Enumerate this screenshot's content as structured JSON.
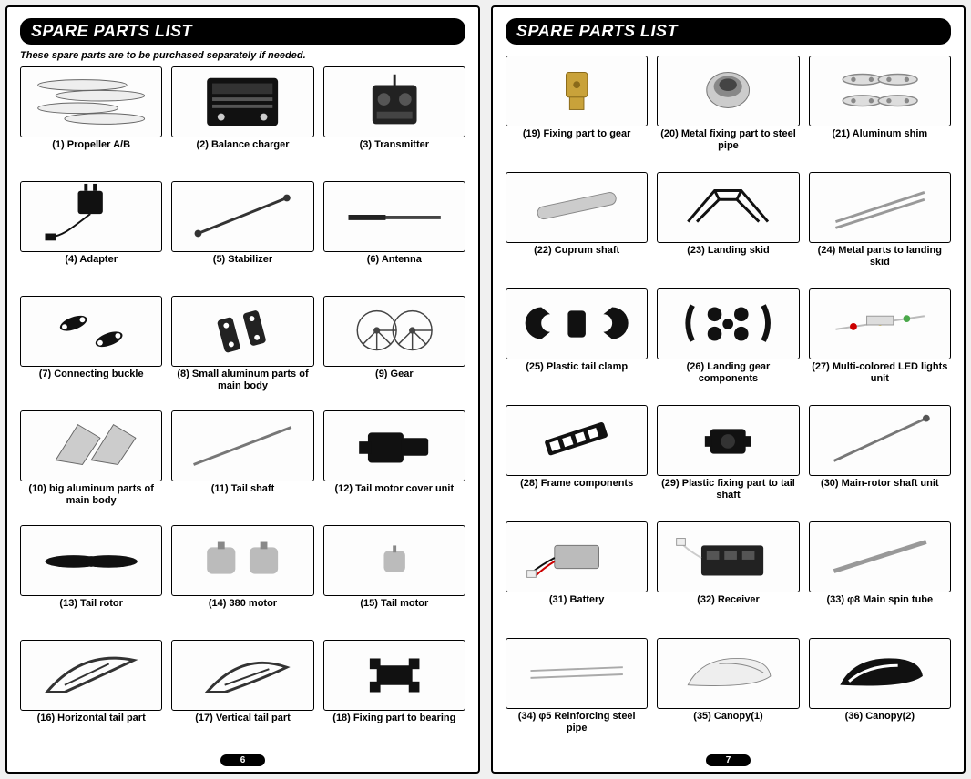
{
  "titleLeft": "SPARE PARTS LIST",
  "titleRight": "SPARE PARTS LIST",
  "subtitle": "These spare parts are to be purchased separately if needed.",
  "pageLeftNum": "6",
  "pageRightNum": "7",
  "leftItems": [
    {
      "n": "1",
      "label": "(1) Propeller A/B"
    },
    {
      "n": "2",
      "label": "(2) Balance charger"
    },
    {
      "n": "3",
      "label": "(3) Transmitter"
    },
    {
      "n": "4",
      "label": "(4) Adapter"
    },
    {
      "n": "5",
      "label": "(5) Stabilizer"
    },
    {
      "n": "6",
      "label": "(6) Antenna"
    },
    {
      "n": "7",
      "label": "(7) Connecting buckle"
    },
    {
      "n": "8",
      "label": "(8) Small aluminum parts of main body"
    },
    {
      "n": "9",
      "label": "(9) Gear"
    },
    {
      "n": "10",
      "label": "(10) big aluminum parts of main body"
    },
    {
      "n": "11",
      "label": "(11) Tail shaft"
    },
    {
      "n": "12",
      "label": "(12) Tail motor cover unit"
    },
    {
      "n": "13",
      "label": "(13) Tail rotor"
    },
    {
      "n": "14",
      "label": "(14) 380 motor"
    },
    {
      "n": "15",
      "label": "(15) Tail motor"
    },
    {
      "n": "16",
      "label": "(16) Horizontal tail part"
    },
    {
      "n": "17",
      "label": "(17) Vertical tail part"
    },
    {
      "n": "18",
      "label": "(18) Fixing part to bearing"
    }
  ],
  "rightItems": [
    {
      "n": "19",
      "label": "(19) Fixing part to gear"
    },
    {
      "n": "20",
      "label": "(20) Metal fixing part to steel pipe"
    },
    {
      "n": "21",
      "label": "(21) Aluminum shim"
    },
    {
      "n": "22",
      "label": "(22) Cuprum shaft"
    },
    {
      "n": "23",
      "label": "(23) Landing skid"
    },
    {
      "n": "24",
      "label": "(24) Metal parts to landing skid"
    },
    {
      "n": "25",
      "label": "(25) Plastic tail clamp"
    },
    {
      "n": "26",
      "label": "(26) Landing gear components"
    },
    {
      "n": "27",
      "label": "(27) Multi-colored LED lights unit"
    },
    {
      "n": "28",
      "label": "(28) Frame components"
    },
    {
      "n": "29",
      "label": "(29) Plastic fixing part to tail shaft"
    },
    {
      "n": "30",
      "label": "(30) Main-rotor shaft unit"
    },
    {
      "n": "31",
      "label": "(31) Battery"
    },
    {
      "n": "32",
      "label": "(32) Receiver"
    },
    {
      "n": "33",
      "label": "(33)  φ8 Main spin tube"
    },
    {
      "n": "34",
      "label": "(34) φ5 Reinforcing steel pipe"
    },
    {
      "n": "35",
      "label": "(35) Canopy(1)"
    },
    {
      "n": "36",
      "label": "(36) Canopy(2)"
    }
  ],
  "colors": {
    "brass": "#c9a23a",
    "darkbrass": "#8a6a1a",
    "steel": "#888888",
    "darksteel": "#555555",
    "black": "#111111",
    "grey": "#bbbbbb",
    "red": "#cc0000",
    "yellow": "#e6c94b"
  }
}
